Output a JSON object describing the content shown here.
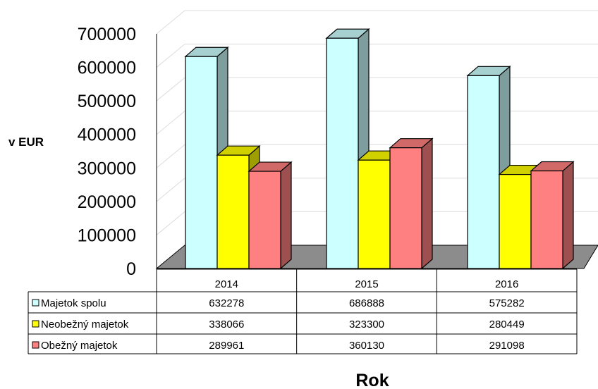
{
  "chart_data": {
    "type": "bar",
    "categories": [
      "2014",
      "2015",
      "2016"
    ],
    "series": [
      {
        "name": "Majetok spolu",
        "values": [
          632278,
          686888,
          575282
        ],
        "color": "#ccffff"
      },
      {
        "name": "Neobežný majetok",
        "values": [
          338066,
          323300,
          280449
        ],
        "color": "#ffff00"
      },
      {
        "name": "Obežný majetok",
        "values": [
          289961,
          360130,
          291098
        ],
        "color": "#ff8080"
      }
    ],
    "title": "",
    "xlabel": "Rok",
    "ylabel": "v EUR",
    "ylim": [
      0,
      700000
    ],
    "yticks": [
      "0",
      "100000",
      "200000",
      "300000",
      "400000",
      "500000",
      "600000",
      "700000"
    ],
    "grid": true,
    "legend": "data-table",
    "style": "3d-clustered-column"
  }
}
